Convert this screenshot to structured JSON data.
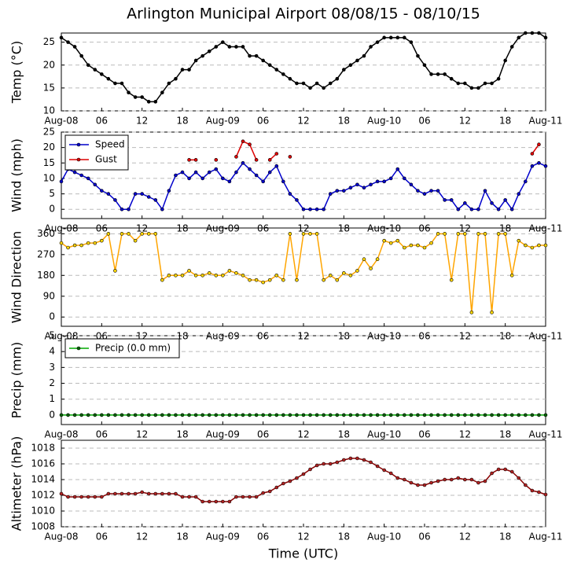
{
  "chart_data": {
    "type": "multi-panel",
    "title": "Arlington Municipal Airport 08/08/15 - 08/10/15",
    "xlabel": "Time (UTC)",
    "xlim": [
      0,
      72
    ],
    "xticks": [
      {
        "value": 0,
        "label": "Aug-08"
      },
      {
        "value": 6,
        "label": "06"
      },
      {
        "value": 12,
        "label": "12"
      },
      {
        "value": 18,
        "label": "18"
      },
      {
        "value": 24,
        "label": "Aug-09"
      },
      {
        "value": 30,
        "label": "06"
      },
      {
        "value": 36,
        "label": "12"
      },
      {
        "value": 42,
        "label": "18"
      },
      {
        "value": 48,
        "label": "Aug-10"
      },
      {
        "value": 54,
        "label": "06"
      },
      {
        "value": 60,
        "label": "12"
      },
      {
        "value": 66,
        "label": "18"
      },
      {
        "value": 72,
        "label": "Aug-11"
      }
    ],
    "x": [
      0,
      1,
      2,
      3,
      4,
      5,
      6,
      7,
      8,
      9,
      10,
      11,
      12,
      13,
      14,
      15,
      16,
      17,
      18,
      19,
      20,
      21,
      22,
      23,
      24,
      25,
      26,
      27,
      28,
      29,
      30,
      31,
      32,
      33,
      34,
      35,
      36,
      37,
      38,
      39,
      40,
      41,
      42,
      43,
      44,
      45,
      46,
      47,
      48,
      49,
      50,
      51,
      52,
      53,
      54,
      55,
      56,
      57,
      58,
      59,
      60,
      61,
      62,
      63,
      64,
      65,
      66,
      67,
      68,
      69,
      70,
      71,
      72
    ],
    "grid": true,
    "panels": [
      {
        "type": "line",
        "ylabel": "Temp (°C)",
        "ylim": [
          10,
          27
        ],
        "yticks": [
          10,
          15,
          20,
          25
        ],
        "series": [
          {
            "name": "Temp",
            "color": "#000000",
            "marker": "#000000",
            "values": [
              26,
              25,
              24,
              22,
              20,
              19,
              18,
              17,
              16,
              16,
              14,
              13,
              13,
              12,
              12,
              14,
              16,
              17,
              19,
              19,
              21,
              22,
              23,
              24,
              25,
              24,
              24,
              24,
              22,
              22,
              21,
              20,
              19,
              18,
              17,
              16,
              16,
              15,
              16,
              15,
              16,
              17,
              19,
              20,
              21,
              22,
              24,
              25,
              26,
              26,
              26,
              26,
              25,
              22,
              20,
              18,
              18,
              18,
              17,
              16,
              16,
              15,
              15,
              16,
              16,
              17,
              21,
              24,
              26,
              27,
              27,
              27,
              26
            ]
          }
        ]
      },
      {
        "type": "line",
        "ylabel": "Wind (mph)",
        "ylim": [
          -3,
          25
        ],
        "yticks": [
          0,
          5,
          10,
          15,
          20,
          25
        ],
        "legend": "upper left",
        "series": [
          {
            "name": "Speed",
            "color": "#0000cc",
            "marker": "#0000cc",
            "values": [
              9,
              13,
              12,
              11,
              10,
              8,
              6,
              5,
              3,
              0,
              0,
              5,
              5,
              4,
              3,
              0,
              6,
              11,
              12,
              10,
              12,
              10,
              12,
              13,
              10,
              9,
              12,
              15,
              13,
              11,
              9,
              12,
              14,
              9,
              5,
              3,
              0,
              0,
              0,
              0,
              5,
              6,
              6,
              7,
              8,
              7,
              8,
              9,
              9,
              10,
              13,
              10,
              8,
              6,
              5,
              6,
              6,
              3,
              3,
              0,
              2,
              0,
              0,
              6,
              2,
              0,
              3,
              0,
              5,
              9,
              14,
              15,
              14
            ]
          },
          {
            "name": "Gust",
            "color": "#dd0000",
            "marker": "#dd0000",
            "values": [
              null,
              null,
              null,
              null,
              null,
              null,
              null,
              null,
              null,
              null,
              null,
              null,
              null,
              null,
              null,
              null,
              null,
              null,
              null,
              16,
              16,
              null,
              null,
              16,
              null,
              null,
              17,
              22,
              21,
              16,
              null,
              16,
              18,
              null,
              17,
              null,
              null,
              null,
              null,
              null,
              null,
              null,
              null,
              null,
              null,
              null,
              null,
              null,
              null,
              null,
              null,
              null,
              null,
              null,
              null,
              null,
              null,
              null,
              null,
              null,
              null,
              null,
              null,
              null,
              null,
              null,
              null,
              null,
              null,
              null,
              18,
              21,
              null
            ]
          }
        ]
      },
      {
        "type": "line",
        "ylabel": "Wind Direction",
        "ylim": [
          -40,
          385
        ],
        "yticks": [
          0,
          90,
          180,
          270,
          360
        ],
        "series": [
          {
            "name": "Direction",
            "color": "#ffa500",
            "marker": "#ffd700",
            "values": [
              320,
              300,
              310,
              310,
              320,
              320,
              330,
              360,
              200,
              360,
              360,
              330,
              360,
              360,
              360,
              160,
              180,
              180,
              180,
              200,
              180,
              180,
              190,
              180,
              180,
              200,
              190,
              180,
              160,
              160,
              150,
              160,
              180,
              160,
              360,
              160,
              360,
              360,
              360,
              160,
              180,
              160,
              190,
              180,
              200,
              250,
              210,
              250,
              330,
              320,
              330,
              300,
              310,
              310,
              300,
              320,
              360,
              360,
              160,
              360,
              360,
              20,
              360,
              360,
              20,
              360,
              360,
              180,
              330,
              310,
              300,
              310,
              310
            ]
          }
        ]
      },
      {
        "type": "line",
        "ylabel": "Precip (mm)",
        "ylim": [
          -0.6,
          5
        ],
        "yticks": [
          0,
          1,
          2,
          3,
          4,
          5
        ],
        "legend": "upper left",
        "series": [
          {
            "name": "Precip (0.0 mm)",
            "color": "#00aa00",
            "marker": "#006400",
            "values": [
              0,
              0,
              0,
              0,
              0,
              0,
              0,
              0,
              0,
              0,
              0,
              0,
              0,
              0,
              0,
              0,
              0,
              0,
              0,
              0,
              0,
              0,
              0,
              0,
              0,
              0,
              0,
              0,
              0,
              0,
              0,
              0,
              0,
              0,
              0,
              0,
              0,
              0,
              0,
              0,
              0,
              0,
              0,
              0,
              0,
              0,
              0,
              0,
              0,
              0,
              0,
              0,
              0,
              0,
              0,
              0,
              0,
              0,
              0,
              0,
              0,
              0,
              0,
              0,
              0,
              0,
              0,
              0,
              0,
              0,
              0,
              0,
              0
            ]
          }
        ]
      },
      {
        "type": "line",
        "ylabel": "Altimeter (hPa)",
        "ylim": [
          1008,
          1019
        ],
        "yticks": [
          1008,
          1010,
          1012,
          1014,
          1016,
          1018
        ],
        "series": [
          {
            "name": "Altimeter",
            "color": "#8b0000",
            "marker": "#b22222",
            "values": [
              1012.2,
              1011.8,
              1011.8,
              1011.8,
              1011.8,
              1011.8,
              1011.8,
              1012.2,
              1012.2,
              1012.2,
              1012.2,
              1012.2,
              1012.4,
              1012.2,
              1012.2,
              1012.2,
              1012.2,
              1012.2,
              1011.8,
              1011.8,
              1011.8,
              1011.2,
              1011.2,
              1011.2,
              1011.2,
              1011.2,
              1011.8,
              1011.8,
              1011.8,
              1011.8,
              1012.3,
              1012.5,
              1013,
              1013.5,
              1013.8,
              1014.2,
              1014.7,
              1015.3,
              1015.8,
              1016,
              1016,
              1016.2,
              1016.5,
              1016.7,
              1016.7,
              1016.5,
              1016.2,
              1015.7,
              1015.2,
              1014.8,
              1014.2,
              1014,
              1013.6,
              1013.3,
              1013.3,
              1013.6,
              1013.8,
              1014,
              1014,
              1014.2,
              1014,
              1014,
              1013.6,
              1013.8,
              1014.8,
              1015.3,
              1015.3,
              1015,
              1014.2,
              1013.3,
              1012.6,
              1012.4,
              1012.1
            ]
          }
        ]
      }
    ]
  }
}
